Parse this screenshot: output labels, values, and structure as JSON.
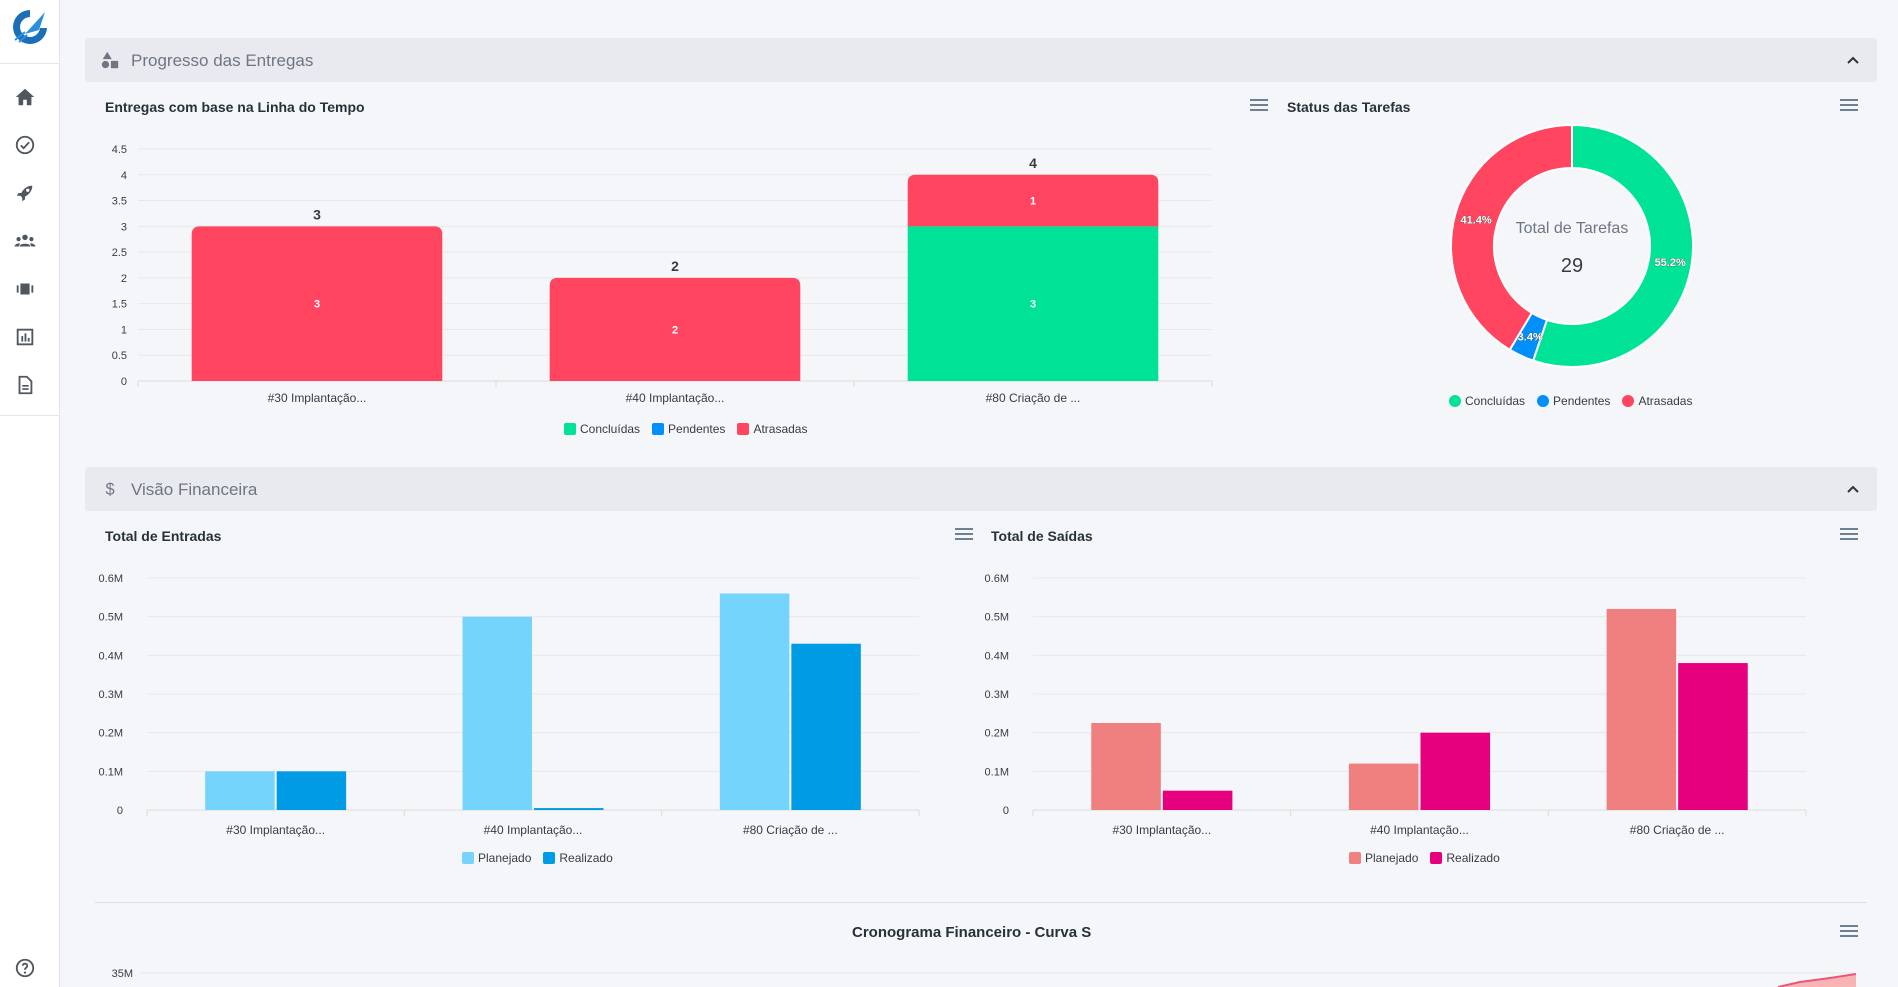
{
  "sidebar": {
    "items": [
      {
        "name": "home-icon"
      },
      {
        "name": "check-circle-icon"
      },
      {
        "name": "rocket-icon"
      },
      {
        "name": "users-icon"
      },
      {
        "name": "boards-icon"
      },
      {
        "name": "chart-icon"
      },
      {
        "name": "document-icon"
      }
    ],
    "help_icon": "help-circle-icon"
  },
  "sections": {
    "deliveries": {
      "title": "Progresso das Entregas"
    },
    "financial": {
      "title": "Visão Financeira"
    }
  },
  "colors": {
    "concluidas": "#00e396",
    "pendentes": "#008ffb",
    "atrasadas": "#ff4560",
    "entradas_planejado": "#74d4fc",
    "entradas_realizado": "#009be5",
    "saidas_planejado": "#f08080",
    "saidas_realizado": "#e6007e"
  },
  "chart_data": [
    {
      "id": "deliveries",
      "type": "bar",
      "stacked": true,
      "title": "Entregas com base na Linha do Tempo",
      "categories": [
        "#30 Implantação...",
        "#40 Implantação...",
        "#80 Criação de ..."
      ],
      "series": [
        {
          "name": "Concluídas",
          "values": [
            0,
            0,
            3
          ]
        },
        {
          "name": "Pendentes",
          "values": [
            0,
            0,
            0
          ]
        },
        {
          "name": "Atrasadas",
          "values": [
            3,
            2,
            1
          ]
        }
      ],
      "totals": [
        3,
        2,
        4
      ],
      "ylim": [
        0,
        4.5
      ],
      "yticks": [
        "4.5",
        "4",
        "3.5",
        "3",
        "2.5",
        "2",
        "1.5",
        "1",
        "0.5",
        "0"
      ],
      "legend": "bottom"
    },
    {
      "id": "status",
      "type": "pie",
      "donut": true,
      "title": "Status das Tarefas",
      "center_label": "Total de Tarefas",
      "center_value": "29",
      "labels": [
        "Concluídas",
        "Pendentes",
        "Atrasadas"
      ],
      "values": [
        55.2,
        3.4,
        41.4
      ],
      "value_labels": [
        "55.2%",
        "3.4%",
        "41.4%"
      ],
      "legend": "bottom"
    },
    {
      "id": "entradas",
      "type": "bar",
      "title": "Total de Entradas",
      "categories": [
        "#30 Implantação...",
        "#40 Implantação...",
        "#80 Criação de ..."
      ],
      "series": [
        {
          "name": "Planejado",
          "values": [
            0.1,
            0.5,
            0.56
          ]
        },
        {
          "name": "Realizado",
          "values": [
            0.1,
            0.005,
            0.43
          ]
        }
      ],
      "ylim": [
        0,
        0.6
      ],
      "yticks": [
        "0.6M",
        "0.5M",
        "0.4M",
        "0.3M",
        "0.2M",
        "0.1M",
        "0"
      ],
      "legend": "bottom"
    },
    {
      "id": "saidas",
      "type": "bar",
      "title": "Total de Saídas",
      "categories": [
        "#30 Implantação...",
        "#40 Implantação...",
        "#80 Criação de ..."
      ],
      "series": [
        {
          "name": "Planejado",
          "values": [
            0.225,
            0.12,
            0.52
          ]
        },
        {
          "name": "Realizado",
          "values": [
            0.05,
            0.2,
            0.38
          ]
        }
      ],
      "ylim": [
        0,
        0.6
      ],
      "yticks": [
        "0.6M",
        "0.5M",
        "0.4M",
        "0.3M",
        "0.2M",
        "0.1M",
        "0"
      ],
      "legend": "bottom"
    },
    {
      "id": "curva-s",
      "type": "line",
      "title": "Cronograma Financeiro - Curva S",
      "yticks": [
        "35M"
      ]
    }
  ]
}
